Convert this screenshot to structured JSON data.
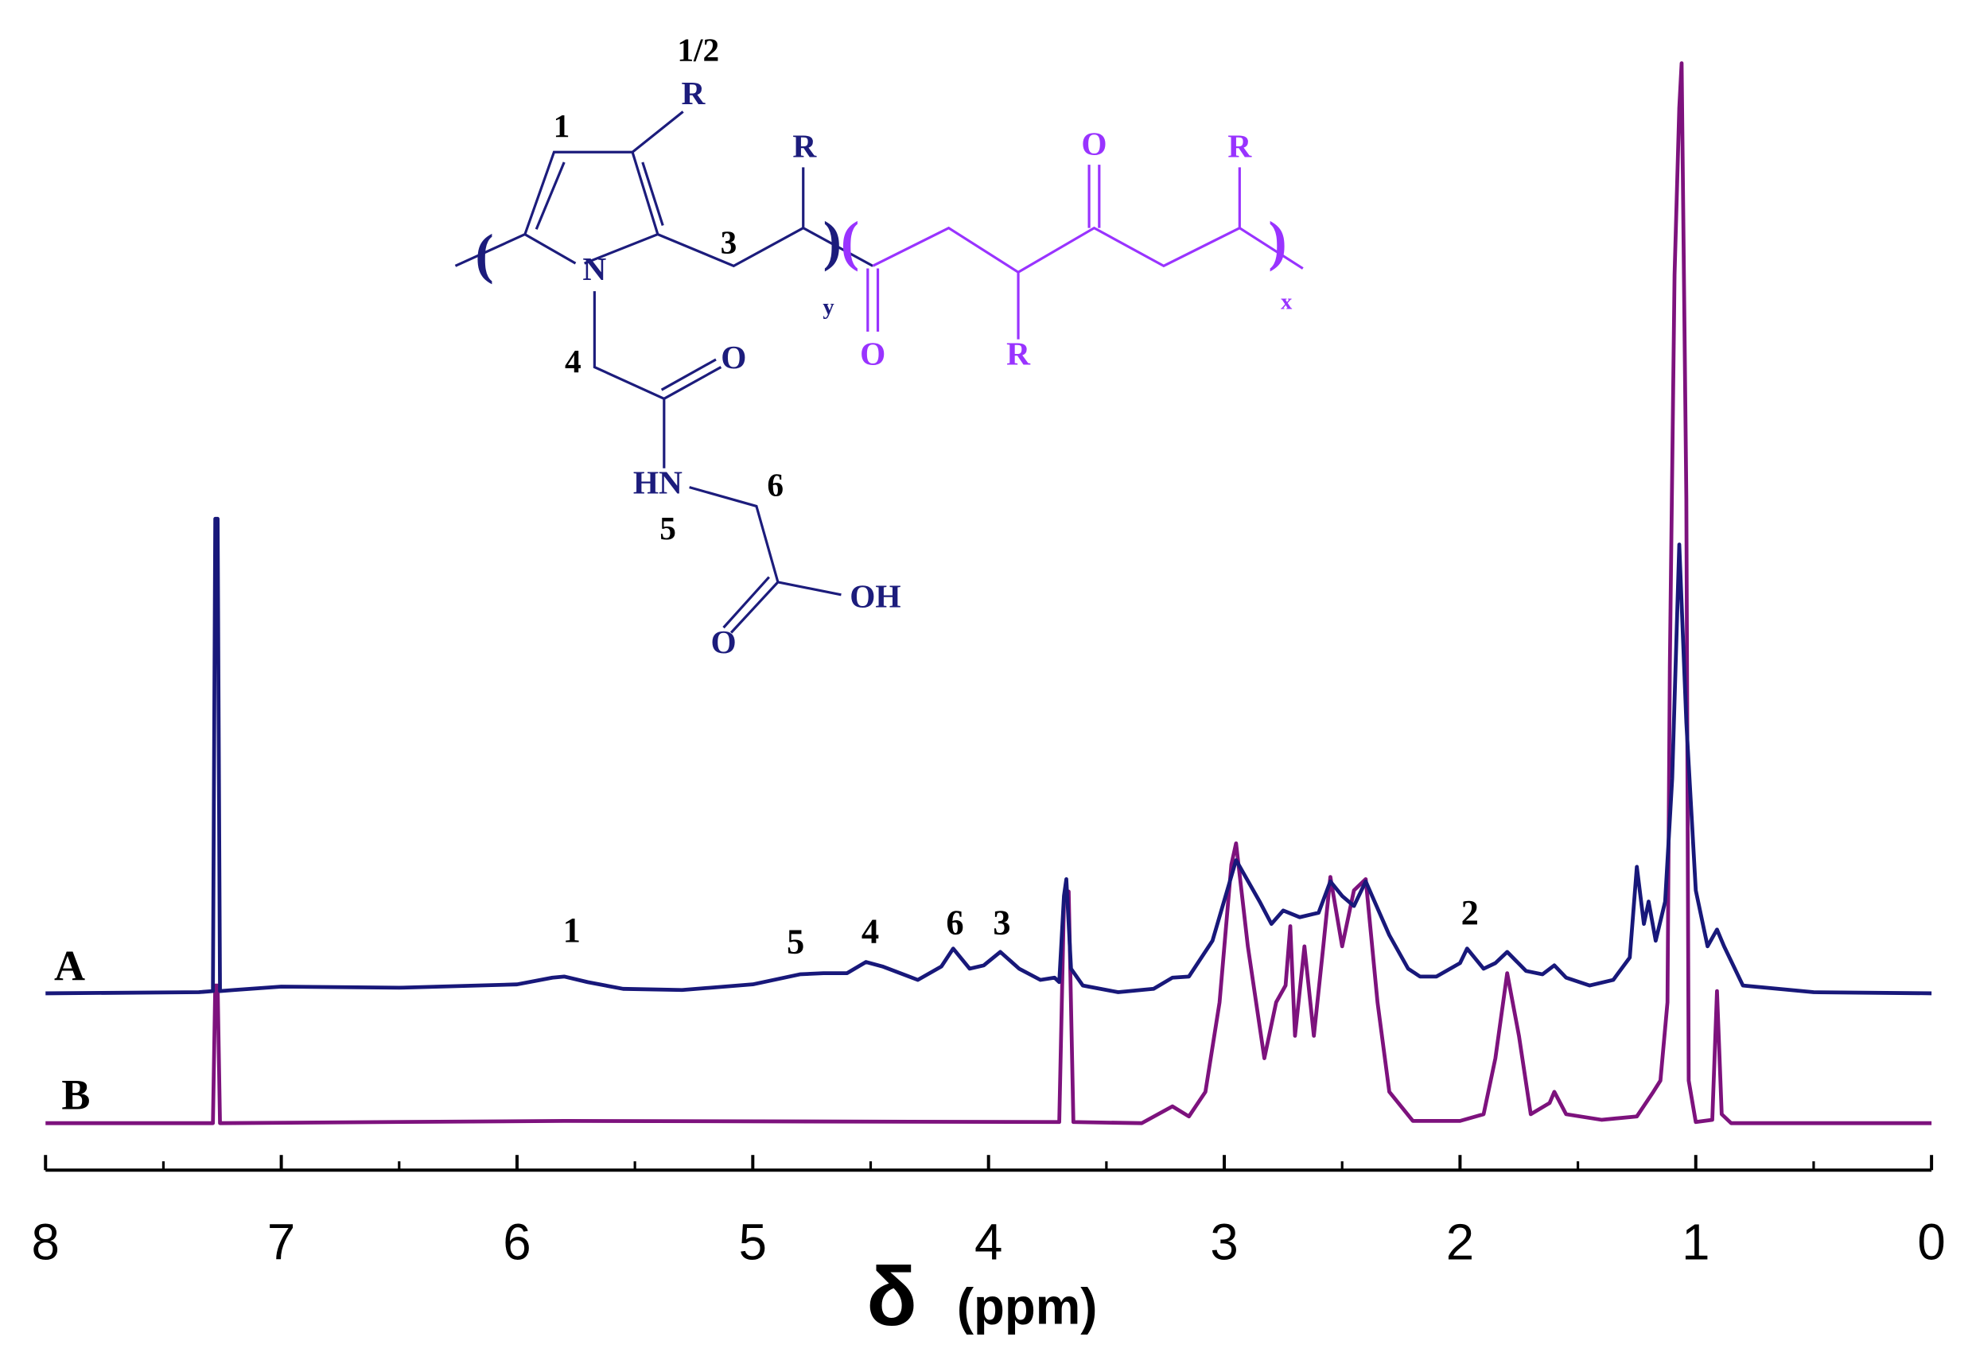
{
  "chart_data": {
    "type": "line",
    "xlabel": "δ",
    "xlabel_unit": "(ppm)",
    "xlim": [
      8,
      0
    ],
    "xticks": [
      8,
      7,
      6,
      5,
      4,
      3,
      2,
      1,
      0
    ],
    "xminorticks": [
      7.5,
      6.5,
      5.5,
      4.5,
      3.5,
      2.5,
      1.5,
      0.5
    ],
    "ylim": [
      0,
      100
    ],
    "series": [
      {
        "name": "A",
        "color": "#18187a",
        "x": [
          8.0,
          7.35,
          7.29,
          7.28,
          7.27,
          7.26,
          7.2,
          7.0,
          6.5,
          6.0,
          5.85,
          5.8,
          5.7,
          5.55,
          5.3,
          5.0,
          4.8,
          4.7,
          4.6,
          4.52,
          4.45,
          4.3,
          4.2,
          4.15,
          4.08,
          4.02,
          3.95,
          3.87,
          3.78,
          3.72,
          3.7,
          3.68,
          3.67,
          3.65,
          3.6,
          3.45,
          3.3,
          3.22,
          3.15,
          3.05,
          2.95,
          2.85,
          2.8,
          2.75,
          2.68,
          2.6,
          2.55,
          2.5,
          2.45,
          2.4,
          2.3,
          2.22,
          2.17,
          2.1,
          2.0,
          1.97,
          1.9,
          1.85,
          1.8,
          1.72,
          1.65,
          1.6,
          1.55,
          1.45,
          1.35,
          1.28,
          1.25,
          1.22,
          1.2,
          1.17,
          1.13,
          1.1,
          1.07,
          1.04,
          1.0,
          0.95,
          0.91,
          0.88,
          0.8,
          0.5,
          0.0
        ],
        "values": [
          15.8,
          15.9,
          16.0,
          58.2,
          58.2,
          16.0,
          16.1,
          16.4,
          16.3,
          16.6,
          17.2,
          17.3,
          16.8,
          16.2,
          16.1,
          16.6,
          17.5,
          17.6,
          17.6,
          18.6,
          18.2,
          17.0,
          18.2,
          19.8,
          18.0,
          18.3,
          19.5,
          18.0,
          17.0,
          17.2,
          16.8,
          24.5,
          26.0,
          18.0,
          16.5,
          15.9,
          16.2,
          17.2,
          17.3,
          20.5,
          27.7,
          24.0,
          22.0,
          23.2,
          22.6,
          23.0,
          25.8,
          24.5,
          23.6,
          25.8,
          21.0,
          18.0,
          17.3,
          17.3,
          18.5,
          19.8,
          18.0,
          18.5,
          19.5,
          17.8,
          17.5,
          18.3,
          17.2,
          16.5,
          17.0,
          19.0,
          27.1,
          22.0,
          24.0,
          20.5,
          24.0,
          35.0,
          55.9,
          40.0,
          25.0,
          20.0,
          21.5,
          20.0,
          16.5,
          15.9,
          15.8
        ]
      },
      {
        "name": "B",
        "color": "#7d127d",
        "x": [
          8.0,
          7.29,
          7.28,
          7.27,
          7.26,
          5.8,
          3.7,
          3.68,
          3.66,
          3.64,
          3.35,
          3.22,
          3.15,
          3.08,
          3.02,
          2.97,
          2.95,
          2.9,
          2.83,
          2.78,
          2.74,
          2.72,
          2.7,
          2.66,
          2.62,
          2.58,
          2.55,
          2.5,
          2.45,
          2.4,
          2.35,
          2.3,
          2.2,
          2.0,
          1.9,
          1.85,
          1.8,
          1.75,
          1.7,
          1.62,
          1.6,
          1.55,
          1.4,
          1.25,
          1.18,
          1.15,
          1.12,
          1.11,
          1.09,
          1.07,
          1.06,
          1.04,
          1.03,
          1.0,
          0.93,
          0.91,
          0.89,
          0.85,
          0.0
        ],
        "values": [
          4.2,
          4.2,
          16.5,
          16.5,
          4.2,
          4.4,
          4.3,
          24.0,
          24.9,
          4.3,
          4.2,
          5.7,
          4.8,
          7.0,
          15.0,
          27.3,
          29.2,
          20.0,
          10.0,
          15.0,
          16.5,
          21.8,
          12.0,
          20.0,
          12.0,
          20.0,
          26.2,
          20.0,
          25.0,
          26.0,
          15.0,
          7.0,
          4.4,
          4.4,
          5.0,
          10.0,
          17.6,
          12.0,
          5.0,
          6.0,
          7.0,
          5.0,
          4.5,
          4.8,
          7.0,
          8.0,
          15.0,
          45.0,
          80.0,
          94.9,
          98.9,
          60.0,
          8.0,
          4.3,
          4.5,
          16.0,
          5.0,
          4.2,
          4.2
        ]
      }
    ],
    "annotations": [
      "1",
      "5",
      "4",
      "6",
      "3",
      "2"
    ]
  },
  "structure": {
    "labels": [
      "1/2",
      "R",
      "1",
      "R",
      "3",
      "N",
      "y",
      "O",
      "R",
      "O",
      "R",
      "x",
      "4",
      "O",
      "HN",
      "6",
      "5",
      "O",
      "OH"
    ]
  }
}
